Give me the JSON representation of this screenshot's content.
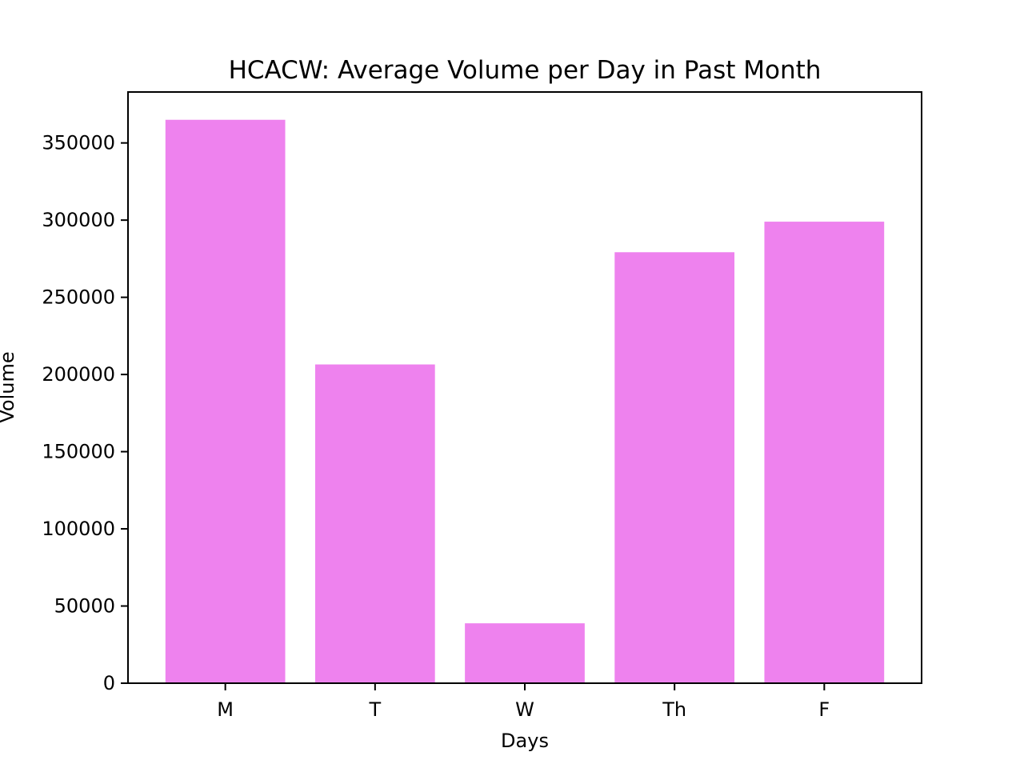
{
  "chart_data": {
    "type": "bar",
    "title": "HCACW: Average Volume per Day in Past Month",
    "xlabel": "Days",
    "ylabel": "Volume",
    "categories": [
      "M",
      "T",
      "W",
      "Th",
      "F"
    ],
    "values": [
      365000,
      206500,
      38800,
      279200,
      299000
    ],
    "ylim": [
      0,
      383000
    ],
    "yticks": [
      0,
      50000,
      100000,
      150000,
      200000,
      250000,
      300000,
      350000
    ],
    "bar_color": "#ee82ee",
    "grid": false,
    "legend": "none"
  }
}
